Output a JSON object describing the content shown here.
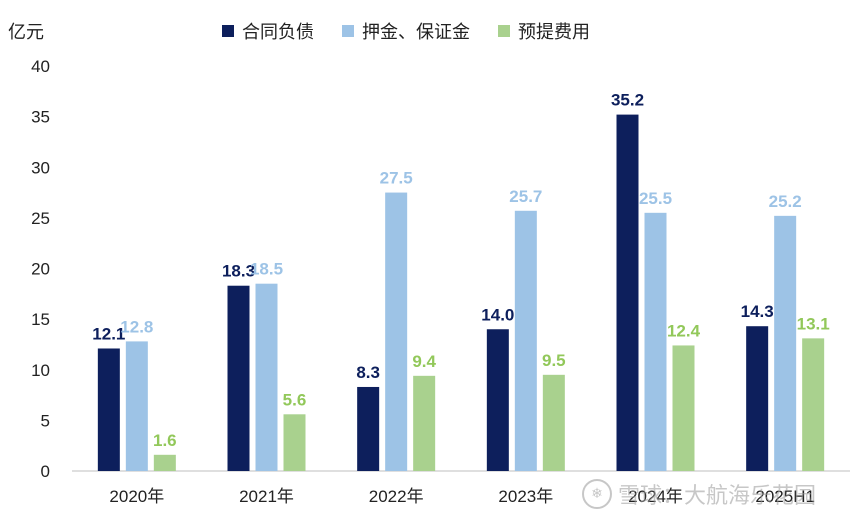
{
  "chart_data": {
    "type": "bar",
    "title": "",
    "xlabel": "",
    "ylabel": "亿元",
    "ylim": [
      0,
      40
    ],
    "yticks": [
      0,
      5,
      10,
      15,
      20,
      25,
      30,
      35,
      40
    ],
    "categories": [
      "2020年",
      "2021年",
      "2022年",
      "2023年",
      "2024年",
      "2025H1"
    ],
    "series": [
      {
        "name": "合同负债",
        "color": "#0d1f5c",
        "label_color": "#0d1f5c",
        "values": [
          12.1,
          18.3,
          8.3,
          14.0,
          35.2,
          14.3
        ]
      },
      {
        "name": "押金、保证金",
        "color": "#9dc3e6",
        "label_color": "#9dc3e6",
        "values": [
          12.8,
          18.5,
          27.5,
          25.7,
          25.5,
          25.2
        ]
      },
      {
        "name": "预提费用",
        "color": "#a9d18e",
        "label_color": "#92c85a",
        "values": [
          1.6,
          5.6,
          9.4,
          9.5,
          12.4,
          13.1
        ]
      }
    ],
    "grid": false,
    "legend": "top"
  },
  "watermark": {
    "icon": "snowball-icon",
    "text": "雪球：大航海乐花园"
  }
}
